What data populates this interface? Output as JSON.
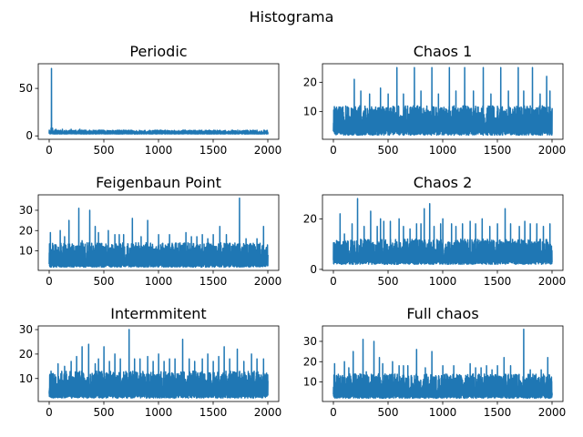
{
  "figure": {
    "suptitle": "Histograma"
  },
  "colors": {
    "line": "#1f77b4",
    "axes": "#000000",
    "background": "#ffffff"
  },
  "chart_data": [
    {
      "type": "line",
      "title": "Periodic",
      "x_range": [
        0,
        2000
      ],
      "xlim": [
        -100,
        2100
      ],
      "ylim": [
        -3.6,
        76
      ],
      "x_ticks": [
        0,
        500,
        1000,
        1500,
        2000
      ],
      "y_ticks": [
        0,
        50
      ],
      "x_tick_labels": [
        "0",
        "500",
        "1000",
        "1500",
        "2000"
      ],
      "y_tick_labels": [
        "0",
        "50"
      ],
      "series": [
        {
          "baseline": [
            2,
            3
          ],
          "noise": [
            2,
            6
          ],
          "spikes": [
            [
              20,
              71
            ],
            [
              15,
              8
            ],
            [
              30,
              8
            ],
            [
              60,
              7
            ],
            [
              120,
              7
            ],
            [
              200,
              7
            ],
            [
              280,
              7
            ]
          ]
        }
      ]
    },
    {
      "type": "line",
      "title": "Chaos 1",
      "x_range": [
        0,
        2000
      ],
      "xlim": [
        -100,
        2100
      ],
      "ylim": [
        0.6,
        26.3
      ],
      "x_ticks": [
        0,
        500,
        1000,
        1500,
        2000
      ],
      "y_ticks": [
        10,
        20
      ],
      "x_tick_labels": [
        "0",
        "500",
        "1000",
        "1500",
        "2000"
      ],
      "y_tick_labels": [
        "10",
        "20"
      ],
      "series": [
        {
          "baseline": [
            2,
            4
          ],
          "noise": [
            4,
            12
          ],
          "spikes": [
            [
              190,
              21
            ],
            [
              250,
              17
            ],
            [
              330,
              16
            ],
            [
              430,
              18
            ],
            [
              500,
              16
            ],
            [
              580,
              25
            ],
            [
              640,
              16
            ],
            [
              740,
              25
            ],
            [
              800,
              17
            ],
            [
              900,
              25
            ],
            [
              960,
              16
            ],
            [
              1060,
              25
            ],
            [
              1120,
              17
            ],
            [
              1200,
              25
            ],
            [
              1280,
              17
            ],
            [
              1370,
              25
            ],
            [
              1440,
              16
            ],
            [
              1530,
              25
            ],
            [
              1600,
              17
            ],
            [
              1690,
              25
            ],
            [
              1740,
              17
            ],
            [
              1820,
              25
            ],
            [
              1890,
              16
            ],
            [
              1950,
              22
            ],
            [
              1980,
              17
            ]
          ]
        }
      ]
    },
    {
      "type": "line",
      "title": "Feigenbaun Point",
      "x_range": [
        0,
        2000
      ],
      "xlim": [
        -100,
        2100
      ],
      "ylim": [
        0.4,
        37.6
      ],
      "x_ticks": [
        0,
        500,
        1000,
        1500,
        2000
      ],
      "y_ticks": [
        10,
        20,
        30
      ],
      "x_tick_labels": [
        "0",
        "500",
        "1000",
        "1500",
        "2000"
      ],
      "y_tick_labels": [
        "10",
        "20",
        "30"
      ],
      "series": [
        {
          "baseline": [
            2,
            4
          ],
          "noise": [
            3,
            14
          ],
          "spikes": [
            [
              10,
              19
            ],
            [
              60,
              13
            ],
            [
              100,
              20
            ],
            [
              140,
              17
            ],
            [
              180,
              25
            ],
            [
              270,
              31
            ],
            [
              300,
              15
            ],
            [
              370,
              30
            ],
            [
              420,
              22
            ],
            [
              450,
              19
            ],
            [
              540,
              20
            ],
            [
              600,
              18
            ],
            [
              640,
              18
            ],
            [
              680,
              18
            ],
            [
              760,
              26
            ],
            [
              840,
              17
            ],
            [
              900,
              25
            ],
            [
              1000,
              18
            ],
            [
              1100,
              18
            ],
            [
              1250,
              19
            ],
            [
              1300,
              17
            ],
            [
              1350,
              17
            ],
            [
              1400,
              18
            ],
            [
              1450,
              16
            ],
            [
              1500,
              18
            ],
            [
              1560,
              22
            ],
            [
              1620,
              18
            ],
            [
              1740,
              36
            ],
            [
              1800,
              16
            ],
            [
              1900,
              16
            ],
            [
              1960,
              22
            ]
          ]
        }
      ]
    },
    {
      "type": "line",
      "title": "Chaos 2",
      "x_range": [
        0,
        2000
      ],
      "xlim": [
        -100,
        2100
      ],
      "ylim": [
        -0.4,
        29.5
      ],
      "x_ticks": [
        0,
        500,
        1000,
        1500,
        2000
      ],
      "y_ticks": [
        0,
        20
      ],
      "x_tick_labels": [
        "0",
        "500",
        "1000",
        "1500",
        "2000"
      ],
      "y_tick_labels": [
        "0",
        "20"
      ],
      "series": [
        {
          "baseline": [
            2,
            4
          ],
          "noise": [
            3,
            12
          ],
          "spikes": [
            [
              20,
              10
            ],
            [
              60,
              22
            ],
            [
              100,
              14
            ],
            [
              170,
              18
            ],
            [
              220,
              28
            ],
            [
              280,
              17
            ],
            [
              340,
              23
            ],
            [
              400,
              17
            ],
            [
              430,
              20
            ],
            [
              460,
              19
            ],
            [
              520,
              19
            ],
            [
              600,
              20
            ],
            [
              640,
              17
            ],
            [
              700,
              16
            ],
            [
              760,
              18
            ],
            [
              800,
              18
            ],
            [
              830,
              24
            ],
            [
              880,
              26
            ],
            [
              920,
              17
            ],
            [
              980,
              18
            ],
            [
              1000,
              20
            ],
            [
              1080,
              18
            ],
            [
              1120,
              17
            ],
            [
              1180,
              18
            ],
            [
              1250,
              19
            ],
            [
              1300,
              18
            ],
            [
              1360,
              20
            ],
            [
              1430,
              17
            ],
            [
              1500,
              18
            ],
            [
              1570,
              24
            ],
            [
              1620,
              18
            ],
            [
              1700,
              17
            ],
            [
              1750,
              19
            ],
            [
              1800,
              18
            ],
            [
              1860,
              18
            ],
            [
              1920,
              17
            ],
            [
              1980,
              18
            ]
          ]
        }
      ]
    },
    {
      "type": "line",
      "title": "Intermmitent",
      "x_range": [
        0,
        2000
      ],
      "xlim": [
        -100,
        2100
      ],
      "ylim": [
        0.6,
        31.5
      ],
      "x_ticks": [
        0,
        500,
        1000,
        1500,
        2000
      ],
      "y_ticks": [
        10,
        20,
        30
      ],
      "x_tick_labels": [
        "0",
        "500",
        "1000",
        "1500",
        "2000"
      ],
      "y_tick_labels": [
        "10",
        "20",
        "30"
      ],
      "series": [
        {
          "baseline": [
            2,
            4
          ],
          "noise": [
            4,
            13
          ],
          "spikes": [
            [
              20,
              12
            ],
            [
              80,
              16
            ],
            [
              140,
              15
            ],
            [
              200,
              17
            ],
            [
              250,
              19
            ],
            [
              300,
              23
            ],
            [
              360,
              24
            ],
            [
              420,
              16
            ],
            [
              450,
              18
            ],
            [
              500,
              23
            ],
            [
              550,
              17
            ],
            [
              600,
              20
            ],
            [
              650,
              18
            ],
            [
              730,
              30
            ],
            [
              780,
              18
            ],
            [
              830,
              18
            ],
            [
              900,
              19
            ],
            [
              950,
              17
            ],
            [
              1000,
              20
            ],
            [
              1050,
              17
            ],
            [
              1100,
              18
            ],
            [
              1150,
              18
            ],
            [
              1220,
              26
            ],
            [
              1280,
              18
            ],
            [
              1330,
              17
            ],
            [
              1400,
              18
            ],
            [
              1450,
              20
            ],
            [
              1500,
              17
            ],
            [
              1550,
              19
            ],
            [
              1600,
              23
            ],
            [
              1650,
              18
            ],
            [
              1720,
              22
            ],
            [
              1780,
              17
            ],
            [
              1850,
              20
            ],
            [
              1900,
              18
            ],
            [
              1960,
              18
            ]
          ]
        }
      ]
    },
    {
      "type": "line",
      "title": "Full chaos",
      "x_range": [
        0,
        2000
      ],
      "xlim": [
        -100,
        2100
      ],
      "ylim": [
        0.4,
        37.6
      ],
      "x_ticks": [
        0,
        500,
        1000,
        1500,
        2000
      ],
      "y_ticks": [
        10,
        20,
        30
      ],
      "x_tick_labels": [
        "0",
        "500",
        "1000",
        "1500",
        "2000"
      ],
      "y_tick_labels": [
        "10",
        "20",
        "30"
      ],
      "series": [
        {
          "baseline": [
            2,
            4
          ],
          "noise": [
            3,
            14
          ],
          "spikes": [
            [
              10,
              19
            ],
            [
              60,
              13
            ],
            [
              100,
              20
            ],
            [
              140,
              17
            ],
            [
              180,
              25
            ],
            [
              270,
              31
            ],
            [
              300,
              15
            ],
            [
              370,
              30
            ],
            [
              420,
              22
            ],
            [
              450,
              19
            ],
            [
              540,
              20
            ],
            [
              600,
              18
            ],
            [
              640,
              18
            ],
            [
              680,
              18
            ],
            [
              760,
              26
            ],
            [
              840,
              17
            ],
            [
              900,
              25
            ],
            [
              1000,
              18
            ],
            [
              1100,
              18
            ],
            [
              1250,
              19
            ],
            [
              1300,
              17
            ],
            [
              1350,
              17
            ],
            [
              1400,
              18
            ],
            [
              1450,
              16
            ],
            [
              1500,
              18
            ],
            [
              1560,
              22
            ],
            [
              1620,
              18
            ],
            [
              1740,
              36
            ],
            [
              1800,
              16
            ],
            [
              1900,
              16
            ],
            [
              1960,
              22
            ]
          ]
        }
      ]
    }
  ]
}
